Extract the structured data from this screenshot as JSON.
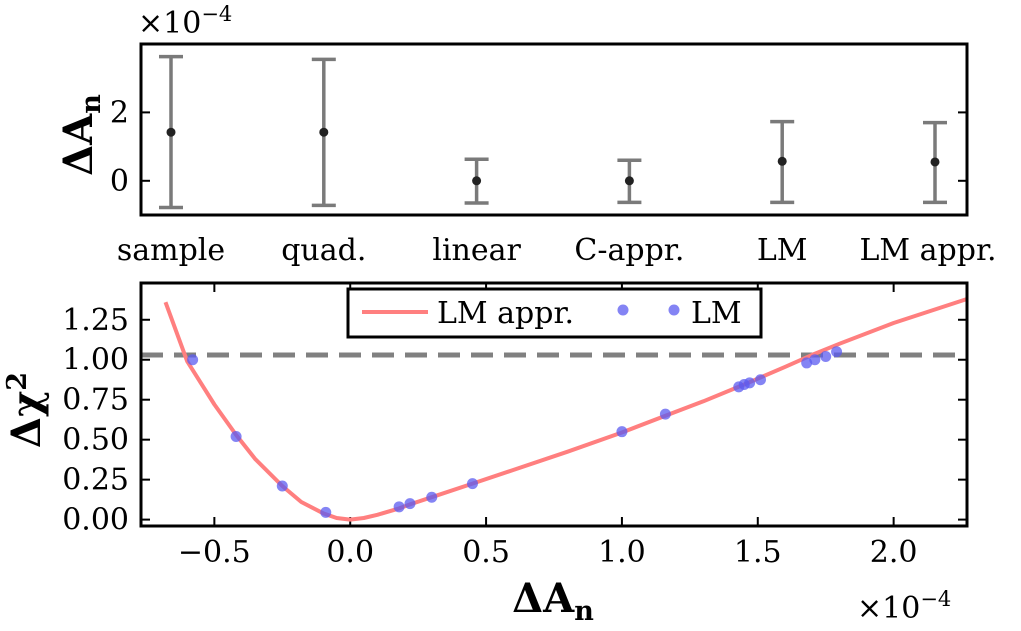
{
  "chart_data": [
    {
      "type": "errorbar",
      "ylabel": "ΔA",
      "ylabel_sub": "n",
      "y_scale_label": "×10",
      "y_scale_exp": "−4",
      "ylim": [
        -1.0,
        4.0
      ],
      "yticks": [
        0,
        2
      ],
      "ytick_labels": [
        "0",
        "2"
      ],
      "categories": [
        "sample",
        "quad.",
        "linear",
        "C-appr.",
        "LM",
        "LM appr."
      ],
      "values": [
        1.42,
        1.42,
        0.0,
        0.0,
        0.57,
        0.55
      ],
      "lower": [
        -0.78,
        -0.72,
        -0.65,
        -0.63,
        -0.63,
        -0.63
      ],
      "upper": [
        3.63,
        3.55,
        0.63,
        0.6,
        1.73,
        1.7
      ]
    },
    {
      "type": "line+scatter",
      "xlabel": "ΔA",
      "xlabel_sub": "n",
      "x_scale_label": "×10",
      "x_scale_exp": "−4",
      "ylabel": "Δχ",
      "ylabel_sup": "2",
      "xlim": [
        -0.77,
        2.27
      ],
      "ylim": [
        -0.04,
        1.48
      ],
      "xticks": [
        -0.5,
        0.0,
        0.5,
        1.0,
        1.5,
        2.0
      ],
      "xtick_labels": [
        "−0.5",
        "0.0",
        "0.5",
        "1.0",
        "1.5",
        "2.0"
      ],
      "yticks": [
        0.0,
        0.25,
        0.5,
        0.75,
        1.0,
        1.25
      ],
      "ytick_labels": [
        "0.00",
        "0.25",
        "0.50",
        "0.75",
        "1.00",
        "1.25"
      ],
      "threshold": 1.03,
      "legend": {
        "position": "top-center",
        "entries": [
          "LM appr.",
          "LM"
        ]
      },
      "series": [
        {
          "name": "LM appr.",
          "kind": "line",
          "color": "#ff7f7f",
          "x": [
            -0.68,
            -0.6,
            -0.5,
            -0.42,
            -0.35,
            -0.25,
            -0.18,
            -0.1,
            -0.05,
            0.0,
            0.05,
            0.1,
            0.18,
            0.22,
            0.3,
            0.45,
            0.6,
            0.8,
            1.0,
            1.16,
            1.3,
            1.45,
            1.6,
            1.7,
            1.8,
            2.0,
            2.27
          ],
          "y": [
            1.36,
            0.99,
            0.72,
            0.53,
            0.38,
            0.21,
            0.11,
            0.04,
            0.01,
            0.0,
            0.01,
            0.03,
            0.07,
            0.095,
            0.14,
            0.225,
            0.31,
            0.425,
            0.545,
            0.65,
            0.74,
            0.845,
            0.955,
            1.03,
            1.1,
            1.23,
            1.38
          ]
        },
        {
          "name": "LM",
          "kind": "scatter",
          "color": "#5b5bf0",
          "x": [
            -0.58,
            -0.42,
            -0.25,
            -0.09,
            0.18,
            0.22,
            0.3,
            0.45,
            1.0,
            1.16,
            1.43,
            1.45,
            1.47,
            1.51,
            1.68,
            1.71,
            1.75,
            1.79
          ],
          "y": [
            1.0,
            0.52,
            0.21,
            0.045,
            0.08,
            0.1,
            0.14,
            0.225,
            0.55,
            0.66,
            0.83,
            0.845,
            0.855,
            0.875,
            0.98,
            1.0,
            1.02,
            1.05
          ]
        }
      ]
    }
  ]
}
